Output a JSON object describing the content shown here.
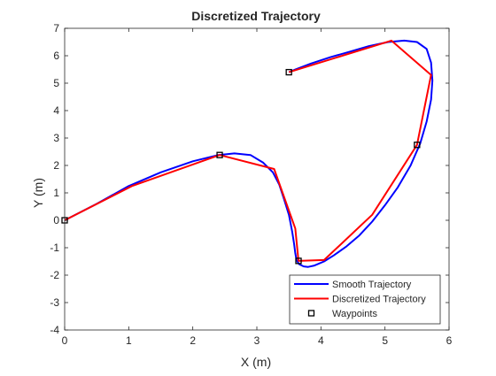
{
  "chart_data": {
    "type": "line",
    "title": "Discretized Trajectory",
    "xlabel": "X (m)",
    "ylabel": "Y (m)",
    "xlim": [
      0,
      6
    ],
    "ylim": [
      -4,
      7
    ],
    "xticks": [
      0,
      1,
      2,
      3,
      4,
      5,
      6
    ],
    "yticks": [
      -4,
      -3,
      -2,
      -1,
      0,
      1,
      2,
      3,
      4,
      5,
      6,
      7
    ],
    "grid": false,
    "legend_position": "bottom-right",
    "series": [
      {
        "name": "Smooth Trajectory",
        "color": "#0000ff",
        "marker": "none",
        "x": [
          0,
          0.5,
          1.0,
          1.5,
          2.0,
          2.4,
          2.65,
          2.9,
          3.1,
          3.25,
          3.35,
          3.42,
          3.5,
          3.55,
          3.58,
          3.6,
          3.62,
          3.66,
          3.73,
          3.8,
          3.9,
          4.05,
          4.2,
          4.4,
          4.6,
          4.8,
          5.0,
          5.2,
          5.4,
          5.55,
          5.65,
          5.72,
          5.74,
          5.72,
          5.65,
          5.5,
          5.3,
          5.05,
          4.75,
          4.45,
          4.15,
          3.85,
          3.6,
          3.5
        ],
        "y": [
          0,
          0.6,
          1.25,
          1.75,
          2.15,
          2.38,
          2.44,
          2.38,
          2.1,
          1.75,
          1.3,
          0.8,
          0.2,
          -0.4,
          -0.85,
          -1.2,
          -1.45,
          -1.6,
          -1.68,
          -1.7,
          -1.65,
          -1.5,
          -1.28,
          -0.95,
          -0.55,
          -0.05,
          0.55,
          1.2,
          2.0,
          2.8,
          3.6,
          4.4,
          5.1,
          5.75,
          6.25,
          6.5,
          6.55,
          6.5,
          6.35,
          6.15,
          5.95,
          5.72,
          5.5,
          5.4
        ]
      },
      {
        "name": "Discretized Trajectory",
        "color": "#ff0000",
        "marker": "none",
        "x": [
          0,
          1.05,
          2.42,
          3.27,
          3.6,
          3.65,
          4.05,
          4.8,
          5.5,
          5.72,
          5.1,
          3.5
        ],
        "y": [
          0,
          1.25,
          2.38,
          1.87,
          -0.3,
          -1.48,
          -1.45,
          0.2,
          2.75,
          5.3,
          6.55,
          5.4
        ]
      },
      {
        "name": "Waypoints",
        "color": "#000000",
        "marker": "square",
        "line": "none",
        "x": [
          0,
          2.42,
          3.65,
          5.5,
          3.5
        ],
        "y": [
          0,
          2.38,
          -1.48,
          2.75,
          5.4
        ]
      }
    ]
  }
}
